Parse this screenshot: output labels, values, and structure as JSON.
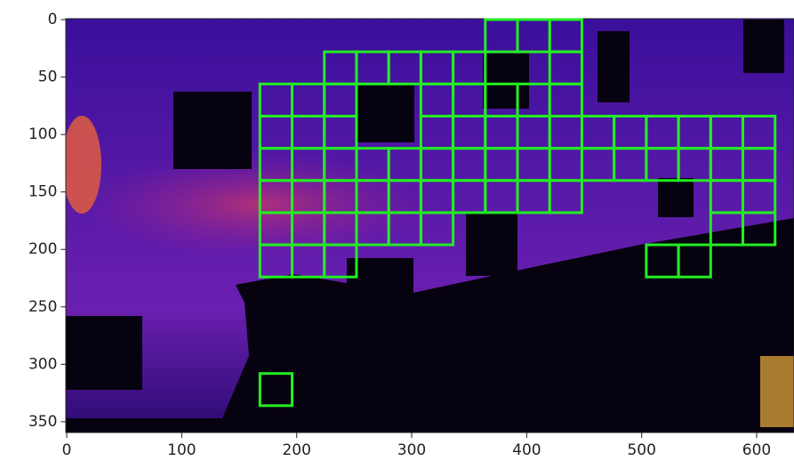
{
  "chart_data": {
    "type": "image",
    "xlim": [
      -0.5,
      639.5
    ],
    "ylim": [
      359.5,
      -0.5
    ],
    "xticks": [
      0,
      100,
      200,
      300,
      400,
      500,
      600
    ],
    "yticks": [
      0,
      50,
      100,
      150,
      200,
      250,
      300,
      350
    ],
    "cell_size": 28,
    "cell_color": "#22ee22",
    "cells": [
      [
        364,
        0
      ],
      [
        392,
        0
      ],
      [
        420,
        0
      ],
      [
        224,
        28
      ],
      [
        252,
        28
      ],
      [
        280,
        28
      ],
      [
        308,
        28
      ],
      [
        336,
        28
      ],
      [
        420,
        28
      ],
      [
        168,
        56
      ],
      [
        196,
        56
      ],
      [
        224,
        56
      ],
      [
        308,
        56
      ],
      [
        336,
        56
      ],
      [
        364,
        56
      ],
      [
        392,
        56
      ],
      [
        420,
        56
      ],
      [
        168,
        84
      ],
      [
        196,
        84
      ],
      [
        224,
        84
      ],
      [
        308,
        84
      ],
      [
        336,
        84
      ],
      [
        364,
        84
      ],
      [
        392,
        84
      ],
      [
        420,
        84
      ],
      [
        448,
        84
      ],
      [
        476,
        84
      ],
      [
        504,
        84
      ],
      [
        532,
        84
      ],
      [
        560,
        84
      ],
      [
        588,
        84
      ],
      [
        168,
        112
      ],
      [
        196,
        112
      ],
      [
        224,
        112
      ],
      [
        252,
        112
      ],
      [
        280,
        112
      ],
      [
        308,
        112
      ],
      [
        336,
        112
      ],
      [
        364,
        112
      ],
      [
        392,
        112
      ],
      [
        420,
        112
      ],
      [
        448,
        112
      ],
      [
        476,
        112
      ],
      [
        504,
        112
      ],
      [
        532,
        112
      ],
      [
        560,
        112
      ],
      [
        588,
        112
      ],
      [
        168,
        140
      ],
      [
        196,
        140
      ],
      [
        224,
        140
      ],
      [
        252,
        140
      ],
      [
        280,
        140
      ],
      [
        308,
        140
      ],
      [
        336,
        140
      ],
      [
        364,
        140
      ],
      [
        392,
        140
      ],
      [
        420,
        140
      ],
      [
        560,
        140
      ],
      [
        588,
        140
      ],
      [
        168,
        168
      ],
      [
        196,
        168
      ],
      [
        224,
        168
      ],
      [
        252,
        168
      ],
      [
        280,
        168
      ],
      [
        308,
        168
      ],
      [
        560,
        168
      ],
      [
        588,
        168
      ],
      [
        168,
        196
      ],
      [
        196,
        196
      ],
      [
        224,
        196
      ],
      [
        504,
        196
      ],
      [
        532,
        196
      ],
      [
        168,
        308
      ]
    ]
  }
}
